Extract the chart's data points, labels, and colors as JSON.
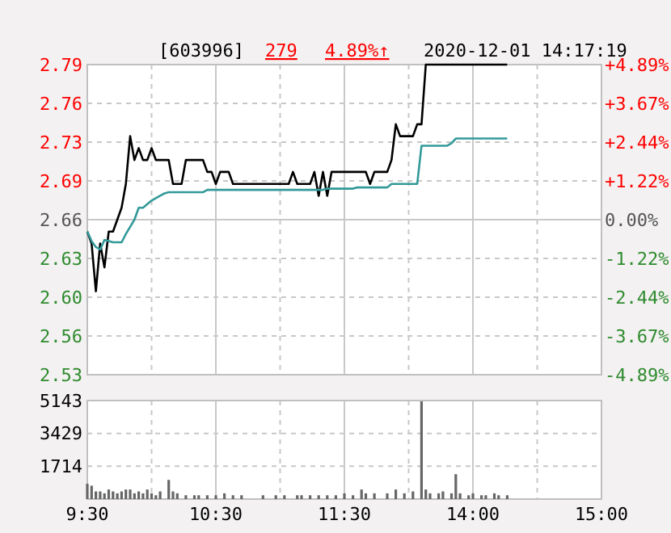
{
  "chart_data": [
    {
      "type": "line",
      "annotations": [
        "[603996]",
        "279",
        "4.89%↑",
        "2020-12-01 14:17:19"
      ],
      "categories": [
        null,
        null,
        null,
        null,
        null,
        null,
        null,
        null,
        null,
        null,
        null,
        null,
        null,
        null,
        null,
        null,
        null,
        null,
        null,
        null,
        null,
        null,
        null,
        null,
        null,
        null,
        null,
        null,
        null,
        null,
        null,
        null,
        null,
        null,
        null,
        null,
        null,
        null,
        null,
        null,
        null,
        null,
        null,
        null,
        null,
        null,
        null,
        null,
        null,
        null,
        null,
        null,
        null,
        null,
        null,
        null,
        null,
        null,
        null,
        null,
        null,
        null,
        null,
        null,
        null,
        null,
        null,
        null,
        null,
        null,
        null,
        null,
        null,
        null,
        null,
        null,
        null,
        null,
        null,
        null,
        null,
        null,
        null,
        null,
        null,
        null,
        null,
        null,
        null,
        null,
        null,
        null,
        null,
        null,
        null,
        null,
        null,
        null,
        null,
        null,
        null,
        null,
        null,
        null,
        null,
        null,
        null,
        null,
        null,
        null,
        null,
        null,
        null,
        null,
        null,
        null,
        null,
        null,
        null,
        null,
        null
      ],
      "series": [
        {
          "color": "#000000",
          "values": [
            2.65,
            2.64,
            2.6,
            2.64,
            2.62,
            2.65,
            2.65,
            2.66,
            2.67,
            2.69,
            2.73,
            2.71,
            2.72,
            2.71,
            2.71,
            2.72,
            2.71,
            2.71,
            2.71,
            2.71,
            2.69,
            2.69,
            2.69,
            2.71,
            2.71,
            2.71,
            2.71,
            2.71,
            2.7,
            2.7,
            2.69,
            2.7,
            2.7,
            2.7,
            2.69,
            2.69,
            2.69,
            2.69,
            2.69,
            2.69,
            2.69,
            2.69,
            2.69,
            2.69,
            2.69,
            2.69,
            2.69,
            2.69,
            2.7,
            2.69,
            2.69,
            2.69,
            2.69,
            2.7,
            2.68,
            2.7,
            2.68,
            2.7,
            2.7,
            2.7,
            2.7,
            2.7,
            2.7,
            2.7,
            2.7,
            2.7,
            2.69,
            2.7,
            2.7,
            2.7,
            2.7,
            2.71,
            2.74,
            2.73,
            2.73,
            2.73,
            2.73,
            2.74,
            2.74,
            2.79,
            2.79,
            2.79,
            2.79,
            2.79,
            2.79,
            2.79,
            2.79,
            2.79,
            2.79,
            2.79,
            2.79,
            2.79,
            2.79,
            2.79,
            2.79,
            2.79,
            2.79,
            2.79,
            2.79,
            null,
            null,
            null,
            null,
            null,
            null,
            null,
            null,
            null,
            null,
            null,
            null,
            null,
            null,
            null,
            null,
            null,
            null,
            null,
            null,
            null,
            null
          ]
        },
        {
          "color": "#339999",
          "values": [
            2.65,
            2.642,
            2.637,
            2.635,
            2.643,
            2.642,
            2.641,
            2.641,
            2.641,
            2.648,
            2.654,
            2.66,
            2.67,
            2.67,
            2.673,
            2.676,
            2.678,
            2.68,
            2.682,
            2.683,
            2.683,
            2.683,
            2.683,
            2.683,
            2.683,
            2.683,
            2.683,
            2.683,
            2.685,
            2.685,
            2.685,
            2.685,
            2.685,
            2.685,
            2.685,
            2.685,
            2.685,
            2.685,
            2.685,
            2.685,
            2.685,
            2.685,
            2.685,
            2.685,
            2.685,
            2.685,
            2.685,
            2.685,
            2.685,
            2.685,
            2.685,
            2.685,
            2.685,
            2.685,
            2.685,
            2.685,
            2.686,
            2.686,
            2.686,
            2.686,
            2.686,
            2.686,
            2.686,
            2.687,
            2.687,
            2.687,
            2.687,
            2.687,
            2.687,
            2.687,
            2.687,
            2.69,
            2.69,
            2.69,
            2.69,
            2.69,
            2.69,
            2.69,
            2.722,
            2.722,
            2.722,
            2.722,
            2.722,
            2.722,
            2.722,
            2.724,
            2.728,
            2.728,
            2.728,
            2.728,
            2.728,
            2.728,
            2.728,
            2.728,
            2.728,
            2.728,
            2.728,
            2.728,
            2.728,
            null,
            null,
            null,
            null,
            null,
            null,
            null,
            null,
            null,
            null,
            null,
            null,
            null,
            null,
            null,
            null,
            null,
            null,
            null,
            null,
            null,
            null
          ]
        }
      ],
      "ylim": [
        2.53,
        2.79
      ],
      "yticks": [
        {
          "value": 2.79,
          "label": "2.79"
        },
        {
          "value": 2.7575,
          "label": "2.76"
        },
        {
          "value": 2.725,
          "label": "2.73"
        },
        {
          "value": 2.6925,
          "label": "2.69"
        },
        {
          "value": 2.66,
          "label": "2.66"
        },
        {
          "value": 2.6275,
          "label": "2.63"
        },
        {
          "value": 2.595,
          "label": "2.60"
        },
        {
          "value": 2.5625,
          "label": "2.56"
        },
        {
          "value": 2.53,
          "label": "2.53"
        }
      ],
      "y2lim": [
        -4.89,
        4.89
      ],
      "y2ticks": [
        {
          "value": 4.89,
          "label": "+4.89%"
        },
        {
          "value": 3.67,
          "label": "+3.67%"
        },
        {
          "value": 2.44,
          "label": "+2.44%"
        },
        {
          "value": 1.22,
          "label": "+1.22%"
        },
        {
          "value": 0,
          "label": "0.00%"
        },
        {
          "value": -1.22,
          "label": "-1.22%"
        },
        {
          "value": -2.44,
          "label": "-2.44%"
        },
        {
          "value": -3.67,
          "label": "-3.67%"
        },
        {
          "value": -4.89,
          "label": "-4.89%"
        }
      ],
      "grid": true,
      "line_style": "solid",
      "marker": "none"
    },
    {
      "type": "bar",
      "color": "#666666",
      "categories": [
        "9:30",
        null,
        null,
        null,
        null,
        null,
        null,
        null,
        null,
        null,
        null,
        null,
        null,
        null,
        null,
        null,
        null,
        null,
        null,
        null,
        null,
        null,
        null,
        null,
        null,
        null,
        null,
        null,
        null,
        null,
        "10:30",
        null,
        null,
        null,
        null,
        null,
        null,
        null,
        null,
        null,
        null,
        null,
        null,
        null,
        null,
        null,
        null,
        null,
        null,
        null,
        null,
        null,
        null,
        null,
        null,
        null,
        null,
        null,
        null,
        null,
        "11:30",
        null,
        null,
        null,
        null,
        null,
        null,
        null,
        null,
        null,
        null,
        null,
        null,
        null,
        null,
        null,
        null,
        null,
        null,
        null,
        null,
        null,
        null,
        null,
        null,
        null,
        null,
        null,
        null,
        null,
        "14:00",
        null,
        null,
        null,
        null,
        null,
        null,
        null,
        null,
        null,
        null,
        null,
        null,
        null,
        null,
        null,
        null,
        null,
        null,
        null,
        null,
        null,
        null,
        null,
        null,
        null,
        null,
        null,
        null,
        null,
        "15:00"
      ],
      "values": [
        800,
        700,
        400,
        400,
        300,
        500,
        400,
        300,
        400,
        500,
        500,
        300,
        400,
        300,
        500,
        300,
        200,
        400,
        null,
        1000,
        400,
        300,
        null,
        200,
        null,
        200,
        200,
        null,
        200,
        null,
        200,
        null,
        300,
        null,
        200,
        null,
        200,
        null,
        null,
        null,
        null,
        200,
        null,
        null,
        200,
        null,
        200,
        null,
        null,
        200,
        200,
        null,
        200,
        null,
        200,
        null,
        200,
        null,
        200,
        null,
        300,
        null,
        200,
        null,
        500,
        300,
        null,
        300,
        null,
        null,
        300,
        null,
        500,
        null,
        300,
        null,
        400,
        null,
        5100,
        500,
        300,
        null,
        300,
        400,
        null,
        300,
        1300,
        300,
        null,
        200,
        300,
        null,
        200,
        200,
        null,
        300,
        200,
        null,
        200,
        null,
        null,
        null,
        null,
        null,
        null,
        null,
        null,
        null,
        null,
        null,
        null,
        null,
        null,
        null,
        null,
        null,
        null,
        null,
        null,
        null,
        null
      ],
      "ylim": [
        0,
        5143
      ],
      "yticks": [
        {
          "value": 0,
          "label": null
        },
        1714,
        3429,
        5143
      ],
      "grid": true
    }
  ]
}
